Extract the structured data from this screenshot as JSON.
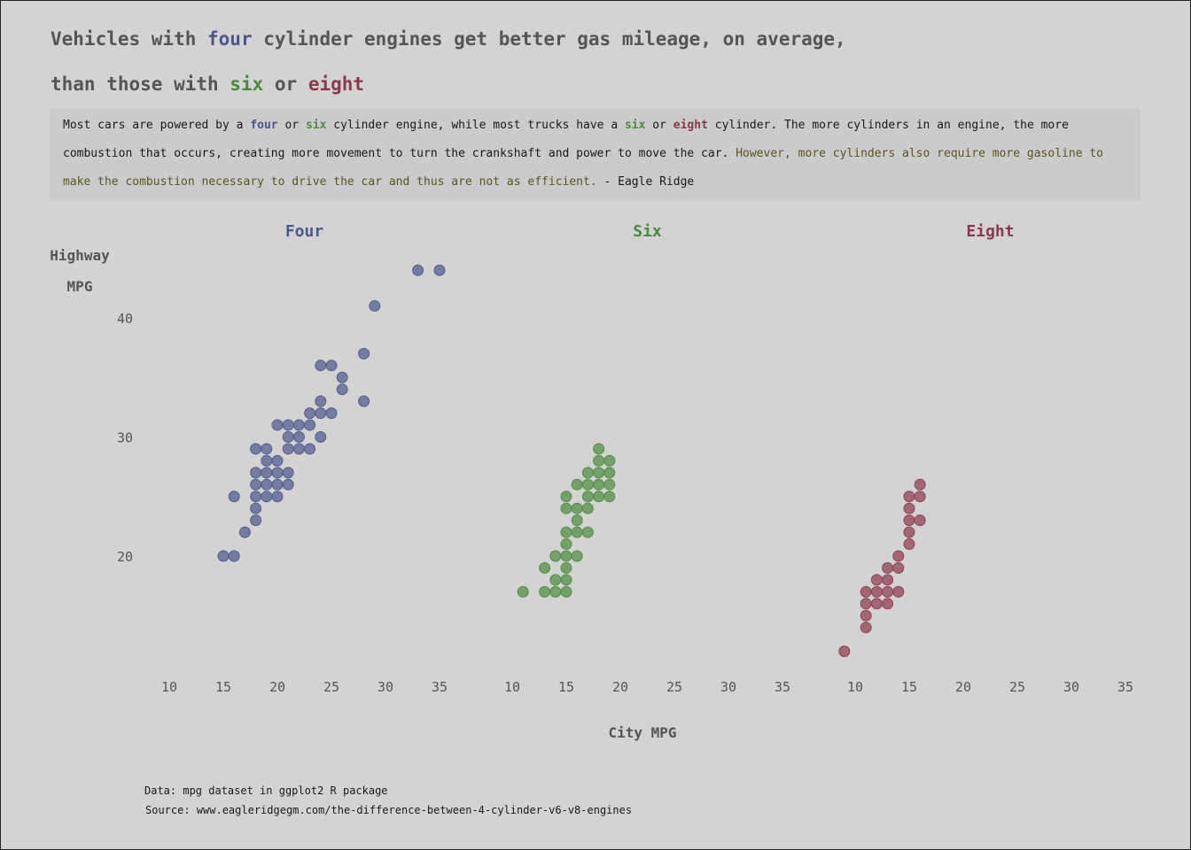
{
  "title": {
    "line1_a": "Vehicles with ",
    "line1_four": "four",
    "line1_b": " cylinder engines get better gas mileage, on average,",
    "line2_a": "than those with ",
    "line2_six": "six",
    "line2_or": " or ",
    "line2_eight": "eight"
  },
  "caption": {
    "l1_a": "Most cars are powered by a ",
    "l1_four": "four",
    "l1_or1": " or ",
    "l1_six": "six",
    "l1_b": " cylinder engine, while most trucks have a ",
    "l1_six2": "six",
    "l1_or2": " or ",
    "l1_eight": "eight",
    "l1_c": " cylinder. The more cylinders in an engine, the more",
    "l2_a": "combustion that occurs, creating more movement to turn the crankshaft and power to move the car. ",
    "l2_hl": "However, more cylinders also require more gasoline to",
    "l3_hl": "make the combustion necessary to drive the car and thus are not as efficient.",
    "l3_b": " - Eagle Ridge"
  },
  "colors": {
    "four": "#4b578c",
    "six": "#4e8a3e",
    "eight": "#8b3a4b",
    "text": "#555555",
    "background": "#d3d3d3",
    "highlight": "#5d5324"
  },
  "footer": {
    "data": "Data: mpg dataset in ggplot2 R package",
    "source": "Source: www.eagleridgegm.com/the-difference-between-4-cylinder-v6-v8-engines"
  },
  "chart_data": {
    "type": "scatter",
    "xlabel": "City MPG",
    "ylabel": "Highway MPG",
    "xlim": [
      8,
      36
    ],
    "ylim": [
      10,
      45
    ],
    "x_ticks": [
      10,
      15,
      20,
      25,
      30,
      35
    ],
    "y_ticks": [
      20,
      30,
      40
    ],
    "grid": false,
    "legend": "none",
    "facets": [
      {
        "name": "Four",
        "color": "#4b578c",
        "points": [
          [
            15,
            20
          ],
          [
            16,
            20
          ],
          [
            16,
            25
          ],
          [
            17,
            22
          ],
          [
            18,
            23
          ],
          [
            18,
            24
          ],
          [
            18,
            25
          ],
          [
            18,
            26
          ],
          [
            18,
            27
          ],
          [
            18,
            29
          ],
          [
            19,
            25
          ],
          [
            19,
            26
          ],
          [
            19,
            27
          ],
          [
            19,
            28
          ],
          [
            19,
            29
          ],
          [
            20,
            25
          ],
          [
            20,
            26
          ],
          [
            20,
            27
          ],
          [
            20,
            28
          ],
          [
            20,
            31
          ],
          [
            21,
            26
          ],
          [
            21,
            27
          ],
          [
            21,
            29
          ],
          [
            21,
            30
          ],
          [
            21,
            31
          ],
          [
            22,
            29
          ],
          [
            22,
            30
          ],
          [
            22,
            31
          ],
          [
            23,
            29
          ],
          [
            23,
            31
          ],
          [
            23,
            32
          ],
          [
            24,
            30
          ],
          [
            24,
            32
          ],
          [
            24,
            33
          ],
          [
            24,
            36
          ],
          [
            25,
            32
          ],
          [
            25,
            36
          ],
          [
            26,
            34
          ],
          [
            26,
            35
          ],
          [
            28,
            33
          ],
          [
            28,
            37
          ],
          [
            29,
            41
          ],
          [
            33,
            44
          ],
          [
            35,
            44
          ]
        ]
      },
      {
        "name": "Six",
        "color": "#4e8a3e",
        "points": [
          [
            11,
            17
          ],
          [
            13,
            17
          ],
          [
            13,
            19
          ],
          [
            14,
            17
          ],
          [
            14,
            18
          ],
          [
            14,
            20
          ],
          [
            15,
            17
          ],
          [
            15,
            18
          ],
          [
            15,
            19
          ],
          [
            15,
            20
          ],
          [
            15,
            21
          ],
          [
            15,
            22
          ],
          [
            15,
            24
          ],
          [
            15,
            25
          ],
          [
            16,
            20
          ],
          [
            16,
            22
          ],
          [
            16,
            23
          ],
          [
            16,
            24
          ],
          [
            16,
            26
          ],
          [
            17,
            22
          ],
          [
            17,
            24
          ],
          [
            17,
            25
          ],
          [
            17,
            26
          ],
          [
            17,
            27
          ],
          [
            18,
            25
          ],
          [
            18,
            26
          ],
          [
            18,
            27
          ],
          [
            18,
            28
          ],
          [
            18,
            29
          ],
          [
            19,
            25
          ],
          [
            19,
            26
          ],
          [
            19,
            27
          ],
          [
            19,
            28
          ]
        ]
      },
      {
        "name": "Eight",
        "color": "#8b3a4b",
        "points": [
          [
            9,
            12
          ],
          [
            11,
            14
          ],
          [
            11,
            15
          ],
          [
            11,
            16
          ],
          [
            11,
            17
          ],
          [
            12,
            16
          ],
          [
            12,
            17
          ],
          [
            12,
            18
          ],
          [
            13,
            16
          ],
          [
            13,
            17
          ],
          [
            13,
            18
          ],
          [
            13,
            19
          ],
          [
            14,
            17
          ],
          [
            14,
            19
          ],
          [
            14,
            20
          ],
          [
            15,
            21
          ],
          [
            15,
            22
          ],
          [
            15,
            23
          ],
          [
            15,
            24
          ],
          [
            15,
            25
          ],
          [
            16,
            23
          ],
          [
            16,
            25
          ],
          [
            16,
            26
          ]
        ]
      }
    ]
  }
}
